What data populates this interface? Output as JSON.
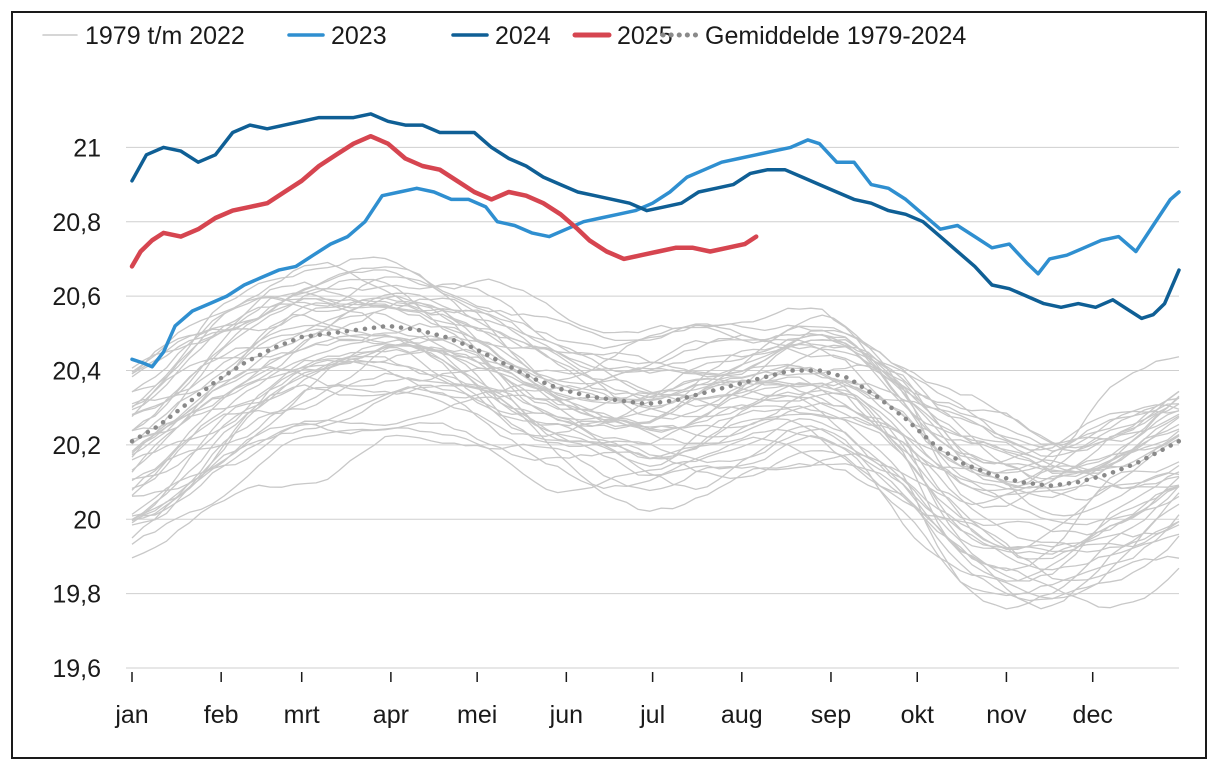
{
  "chart_data": {
    "type": "line",
    "title": "",
    "xlabel": "",
    "ylabel": "",
    "x_ticks": [
      "jan",
      "feb",
      "mrt",
      "apr",
      "mei",
      "jun",
      "jul",
      "aug",
      "sep",
      "okt",
      "nov",
      "dec"
    ],
    "y_ticks": [
      "19,6",
      "19,8",
      "20",
      "20,2",
      "20,4",
      "20,6",
      "20,8",
      "21"
    ],
    "y_tick_values": [
      19.6,
      19.8,
      20.0,
      20.2,
      20.4,
      20.6,
      20.8,
      21.0
    ],
    "ylim": [
      19.6,
      21.2
    ],
    "xlim_days": [
      1,
      365
    ],
    "grid": "horizontal",
    "legend_position": "top",
    "legend": [
      {
        "label": "1979 t/m 2022",
        "color": "#c8c8c8",
        "style": "thin"
      },
      {
        "label": "2023",
        "color": "#2f8fd0",
        "style": "solid"
      },
      {
        "label": "2024",
        "color": "#0f5f95",
        "style": "solid"
      },
      {
        "label": "2025",
        "color": "#d64550",
        "style": "thick"
      },
      {
        "label": "Gemiddelde 1979-2024",
        "color": "#8a8a8a",
        "style": "dotted"
      }
    ],
    "series": [
      {
        "name": "2023",
        "color": "#2f8fd0",
        "points": [
          [
            1,
            20.43
          ],
          [
            5,
            20.42
          ],
          [
            8,
            20.41
          ],
          [
            12,
            20.45
          ],
          [
            16,
            20.52
          ],
          [
            22,
            20.56
          ],
          [
            28,
            20.58
          ],
          [
            34,
            20.6
          ],
          [
            40,
            20.63
          ],
          [
            46,
            20.65
          ],
          [
            52,
            20.67
          ],
          [
            58,
            20.68
          ],
          [
            64,
            20.71
          ],
          [
            70,
            20.74
          ],
          [
            76,
            20.76
          ],
          [
            82,
            20.8
          ],
          [
            88,
            20.87
          ],
          [
            94,
            20.88
          ],
          [
            100,
            20.89
          ],
          [
            106,
            20.88
          ],
          [
            112,
            20.86
          ],
          [
            118,
            20.86
          ],
          [
            124,
            20.84
          ],
          [
            128,
            20.8
          ],
          [
            134,
            20.79
          ],
          [
            140,
            20.77
          ],
          [
            146,
            20.76
          ],
          [
            152,
            20.78
          ],
          [
            158,
            20.8
          ],
          [
            164,
            20.81
          ],
          [
            170,
            20.82
          ],
          [
            176,
            20.83
          ],
          [
            182,
            20.85
          ],
          [
            188,
            20.88
          ],
          [
            194,
            20.92
          ],
          [
            200,
            20.94
          ],
          [
            206,
            20.96
          ],
          [
            212,
            20.97
          ],
          [
            218,
            20.98
          ],
          [
            224,
            20.99
          ],
          [
            230,
            21.0
          ],
          [
            236,
            21.02
          ],
          [
            240,
            21.01
          ],
          [
            246,
            20.96
          ],
          [
            252,
            20.96
          ],
          [
            258,
            20.9
          ],
          [
            264,
            20.89
          ],
          [
            270,
            20.86
          ],
          [
            276,
            20.82
          ],
          [
            282,
            20.78
          ],
          [
            288,
            20.79
          ],
          [
            294,
            20.76
          ],
          [
            300,
            20.73
          ],
          [
            306,
            20.74
          ],
          [
            312,
            20.69
          ],
          [
            316,
            20.66
          ],
          [
            320,
            20.7
          ],
          [
            326,
            20.71
          ],
          [
            332,
            20.73
          ],
          [
            338,
            20.75
          ],
          [
            344,
            20.76
          ],
          [
            350,
            20.72
          ],
          [
            356,
            20.79
          ],
          [
            362,
            20.86
          ],
          [
            365,
            20.88
          ]
        ]
      },
      {
        "name": "2024",
        "color": "#0f5f95",
        "points": [
          [
            1,
            20.91
          ],
          [
            6,
            20.98
          ],
          [
            12,
            21.0
          ],
          [
            18,
            20.99
          ],
          [
            24,
            20.96
          ],
          [
            30,
            20.98
          ],
          [
            36,
            21.04
          ],
          [
            42,
            21.06
          ],
          [
            48,
            21.05
          ],
          [
            54,
            21.06
          ],
          [
            60,
            21.07
          ],
          [
            66,
            21.08
          ],
          [
            72,
            21.08
          ],
          [
            78,
            21.08
          ],
          [
            84,
            21.09
          ],
          [
            90,
            21.07
          ],
          [
            96,
            21.06
          ],
          [
            102,
            21.06
          ],
          [
            108,
            21.04
          ],
          [
            114,
            21.04
          ],
          [
            120,
            21.04
          ],
          [
            126,
            21.0
          ],
          [
            132,
            20.97
          ],
          [
            138,
            20.95
          ],
          [
            144,
            20.92
          ],
          [
            150,
            20.9
          ],
          [
            156,
            20.88
          ],
          [
            162,
            20.87
          ],
          [
            168,
            20.86
          ],
          [
            174,
            20.85
          ],
          [
            180,
            20.83
          ],
          [
            186,
            20.84
          ],
          [
            192,
            20.85
          ],
          [
            198,
            20.88
          ],
          [
            204,
            20.89
          ],
          [
            210,
            20.9
          ],
          [
            216,
            20.93
          ],
          [
            222,
            20.94
          ],
          [
            228,
            20.94
          ],
          [
            234,
            20.92
          ],
          [
            240,
            20.9
          ],
          [
            246,
            20.88
          ],
          [
            252,
            20.86
          ],
          [
            258,
            20.85
          ],
          [
            264,
            20.83
          ],
          [
            270,
            20.82
          ],
          [
            276,
            20.8
          ],
          [
            282,
            20.76
          ],
          [
            288,
            20.72
          ],
          [
            294,
            20.68
          ],
          [
            300,
            20.63
          ],
          [
            306,
            20.62
          ],
          [
            312,
            20.6
          ],
          [
            318,
            20.58
          ],
          [
            324,
            20.57
          ],
          [
            330,
            20.58
          ],
          [
            336,
            20.57
          ],
          [
            342,
            20.59
          ],
          [
            348,
            20.56
          ],
          [
            352,
            20.54
          ],
          [
            356,
            20.55
          ],
          [
            360,
            20.58
          ],
          [
            365,
            20.67
          ]
        ]
      },
      {
        "name": "2025",
        "color": "#d64550",
        "points": [
          [
            1,
            20.68
          ],
          [
            4,
            20.72
          ],
          [
            8,
            20.75
          ],
          [
            12,
            20.77
          ],
          [
            18,
            20.76
          ],
          [
            24,
            20.78
          ],
          [
            30,
            20.81
          ],
          [
            36,
            20.83
          ],
          [
            42,
            20.84
          ],
          [
            48,
            20.85
          ],
          [
            54,
            20.88
          ],
          [
            60,
            20.91
          ],
          [
            66,
            20.95
          ],
          [
            72,
            20.98
          ],
          [
            78,
            21.01
          ],
          [
            84,
            21.03
          ],
          [
            90,
            21.01
          ],
          [
            96,
            20.97
          ],
          [
            102,
            20.95
          ],
          [
            108,
            20.94
          ],
          [
            114,
            20.91
          ],
          [
            120,
            20.88
          ],
          [
            126,
            20.86
          ],
          [
            132,
            20.88
          ],
          [
            138,
            20.87
          ],
          [
            144,
            20.85
          ],
          [
            150,
            20.82
          ],
          [
            156,
            20.78
          ],
          [
            160,
            20.75
          ],
          [
            166,
            20.72
          ],
          [
            172,
            20.7
          ],
          [
            178,
            20.71
          ],
          [
            184,
            20.72
          ],
          [
            190,
            20.73
          ],
          [
            196,
            20.73
          ],
          [
            202,
            20.72
          ],
          [
            208,
            20.73
          ],
          [
            214,
            20.74
          ],
          [
            218,
            20.76
          ]
        ]
      },
      {
        "name": "Gemiddelde 1979-2024",
        "color": "#8a8a8a",
        "points": [
          [
            1,
            20.21
          ],
          [
            10,
            20.25
          ],
          [
            20,
            20.31
          ],
          [
            30,
            20.37
          ],
          [
            40,
            20.42
          ],
          [
            50,
            20.46
          ],
          [
            60,
            20.49
          ],
          [
            70,
            20.5
          ],
          [
            80,
            20.51
          ],
          [
            90,
            20.52
          ],
          [
            100,
            20.51
          ],
          [
            110,
            20.49
          ],
          [
            120,
            20.46
          ],
          [
            130,
            20.42
          ],
          [
            140,
            20.38
          ],
          [
            150,
            20.35
          ],
          [
            160,
            20.33
          ],
          [
            170,
            20.32
          ],
          [
            180,
            20.31
          ],
          [
            190,
            20.32
          ],
          [
            200,
            20.34
          ],
          [
            210,
            20.36
          ],
          [
            220,
            20.38
          ],
          [
            230,
            20.4
          ],
          [
            240,
            20.4
          ],
          [
            250,
            20.38
          ],
          [
            260,
            20.33
          ],
          [
            270,
            20.27
          ],
          [
            280,
            20.2
          ],
          [
            290,
            20.15
          ],
          [
            300,
            20.12
          ],
          [
            310,
            20.1
          ],
          [
            320,
            20.09
          ],
          [
            330,
            20.1
          ],
          [
            340,
            20.12
          ],
          [
            350,
            20.15
          ],
          [
            365,
            20.21
          ]
        ]
      }
    ]
  }
}
